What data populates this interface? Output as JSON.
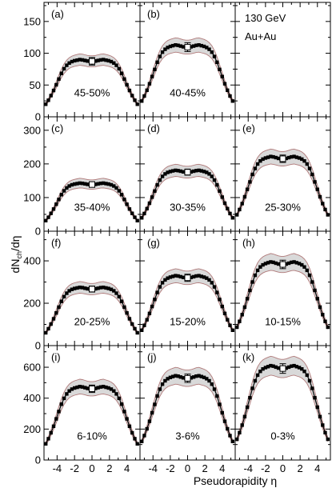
{
  "labels": {
    "ylabel": "dN ch/dη",
    "ylabel_main": "dN",
    "ylabel_sub": "ch",
    "ylabel_tail": "/dη",
    "xlabel": "Pseudorapidity η",
    "energy": "130 GeV",
    "system": "Au+Au",
    "x_ticks": [
      "-4",
      "-2",
      "0",
      "2",
      "4"
    ]
  },
  "colors": {
    "band_fill": "#d9d9d9",
    "band_edge": "#b07a7a",
    "data": "#000000",
    "frame": "#000000"
  },
  "chart_data": {
    "type": "scatter",
    "xlim": [
      -5.5,
      5.5
    ],
    "x_ticks": [
      -4,
      -2,
      0,
      2,
      4
    ],
    "x_minor_step": 1,
    "rows": [
      {
        "ylim": [
          0,
          180
        ],
        "y_ticks": [
          0,
          50,
          100,
          150
        ],
        "y_minor_step": 25
      },
      {
        "ylim": [
          0,
          340
        ],
        "y_ticks": [
          0,
          100,
          200,
          300
        ],
        "y_minor_step": 50
      },
      {
        "ylim": [
          0,
          540
        ],
        "y_ticks": [
          0,
          200,
          400
        ],
        "y_minor_step": 100
      },
      {
        "ylim": [
          0,
          740
        ],
        "y_ticks": [
          0,
          200,
          400,
          600
        ],
        "y_minor_step": 100
      }
    ],
    "eta": [
      -5.3,
      -5.0,
      -4.7,
      -4.4,
      -4.1,
      -3.8,
      -3.5,
      -3.2,
      -2.9,
      -2.6,
      -2.3,
      -2.0,
      -1.7,
      -1.4,
      -1.1,
      -0.8,
      -0.5,
      -0.2,
      0.1,
      0.4,
      0.7,
      1.0,
      1.3,
      1.6,
      1.9,
      2.2,
      2.5,
      2.8,
      3.1,
      3.4,
      3.7,
      4.0,
      4.3,
      4.6,
      4.9,
      5.2
    ],
    "shape": [
      0.22,
      0.29,
      0.37,
      0.46,
      0.56,
      0.66,
      0.76,
      0.84,
      0.9,
      0.94,
      0.965,
      0.98,
      0.99,
      1.0,
      0.995,
      0.985,
      0.975,
      0.97,
      0.97,
      0.975,
      0.985,
      0.995,
      1.0,
      0.99,
      0.98,
      0.965,
      0.94,
      0.9,
      0.84,
      0.76,
      0.66,
      0.56,
      0.46,
      0.37,
      0.29,
      0.22
    ],
    "band_rel": 0.1,
    "panels": [
      {
        "label": "(a)",
        "centrality": "45-50%",
        "row": 0,
        "col": 0,
        "plateau": 90,
        "mid_err": 6,
        "has_data": true
      },
      {
        "label": "(b)",
        "centrality": "40-45%",
        "row": 0,
        "col": 1,
        "plateau": 113,
        "mid_err": 7,
        "has_data": true
      },
      {
        "label": "",
        "centrality": "",
        "row": 0,
        "col": 2,
        "plateau": 0,
        "mid_err": 0,
        "has_data": false
      },
      {
        "label": "(c)",
        "centrality": "35-40%",
        "row": 1,
        "col": 0,
        "plateau": 143,
        "mid_err": 8,
        "has_data": true
      },
      {
        "label": "(d)",
        "centrality": "30-35%",
        "row": 1,
        "col": 1,
        "plateau": 181,
        "mid_err": 9,
        "has_data": true
      },
      {
        "label": "(e)",
        "centrality": "25-30%",
        "row": 1,
        "col": 2,
        "plateau": 222,
        "mid_err": 11,
        "has_data": true
      },
      {
        "label": "(f)",
        "centrality": "20-25%",
        "row": 2,
        "col": 0,
        "plateau": 275,
        "mid_err": 14,
        "has_data": true
      },
      {
        "label": "(g)",
        "centrality": "15-20%",
        "row": 2,
        "col": 1,
        "plateau": 330,
        "mid_err": 17,
        "has_data": true
      },
      {
        "label": "(h)",
        "centrality": "10-15%",
        "row": 2,
        "col": 2,
        "plateau": 395,
        "mid_err": 20,
        "has_data": true
      },
      {
        "label": "(i)",
        "centrality": "6-10%",
        "row": 3,
        "col": 0,
        "plateau": 475,
        "mid_err": 24,
        "has_data": true
      },
      {
        "label": "(j)",
        "centrality": "3-6%",
        "row": 3,
        "col": 1,
        "plateau": 545,
        "mid_err": 27,
        "has_data": true
      },
      {
        "label": "(k)",
        "centrality": "0-3%",
        "row": 3,
        "col": 2,
        "plateau": 610,
        "mid_err": 31,
        "has_data": true
      }
    ]
  }
}
